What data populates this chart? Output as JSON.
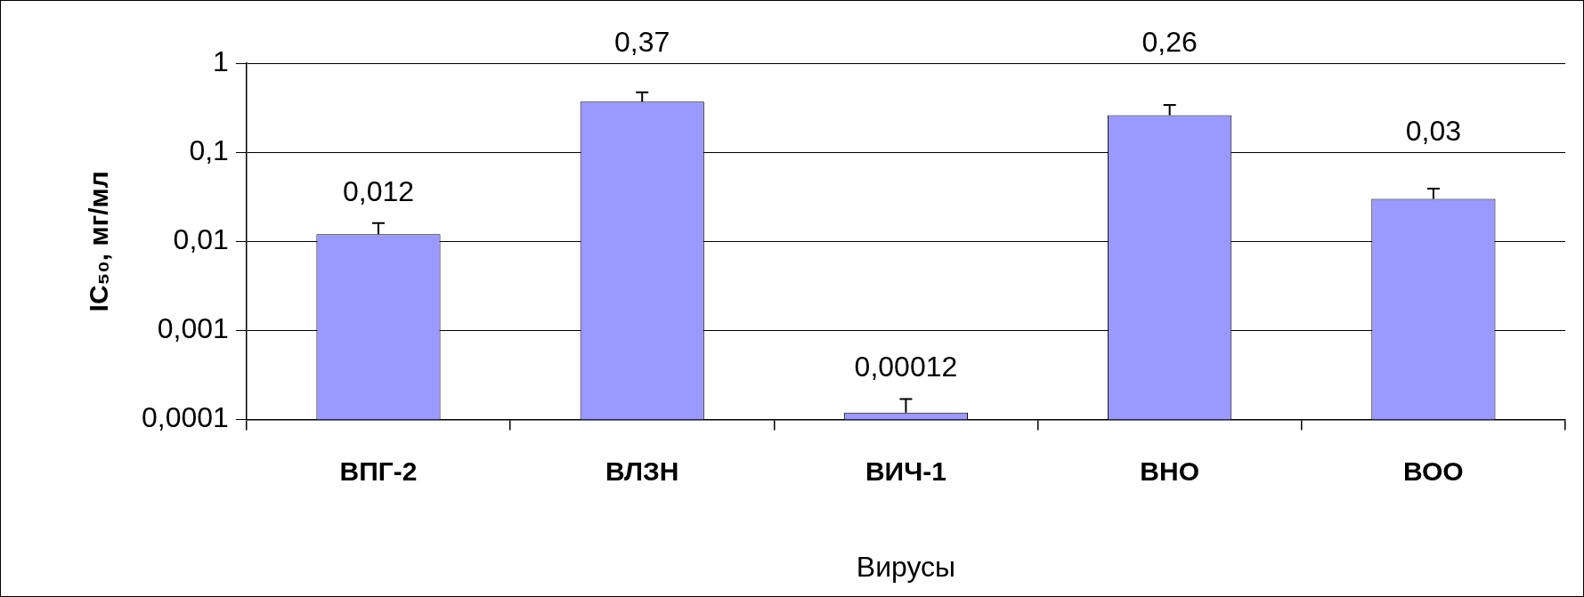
{
  "chart_data": {
    "type": "bar",
    "xlabel": "Вирусы",
    "ylabel": "IC₅₀, мг/мл",
    "categories": [
      "ВПГ-2",
      "ВЛЗН",
      "ВИЧ-1",
      "ВНО",
      "ВОО"
    ],
    "values": [
      0.012,
      0.37,
      0.00012,
      0.26,
      0.03
    ],
    "errors": [
      [
        0.012,
        0.016
      ],
      [
        0.37,
        0.47
      ],
      [
        0.00012,
        0.00017
      ],
      [
        0.26,
        0.34
      ],
      [
        0.03,
        0.039
      ]
    ],
    "color": "#9999ff",
    "log": "y",
    "ylim": [
      0.0001,
      1
    ],
    "yticks": [
      {
        "value": 0.0001,
        "label": "0,0001"
      },
      {
        "value": 0.001,
        "label": "0,001"
      },
      {
        "value": 0.01,
        "label": "0,01"
      },
      {
        "value": 0.1,
        "label": "0,1"
      },
      1
    ],
    "value_labels": [
      "0,012",
      "0,37",
      "0,00012",
      "0,26",
      "0,03"
    ],
    "grid": "y",
    "legend": false
  }
}
